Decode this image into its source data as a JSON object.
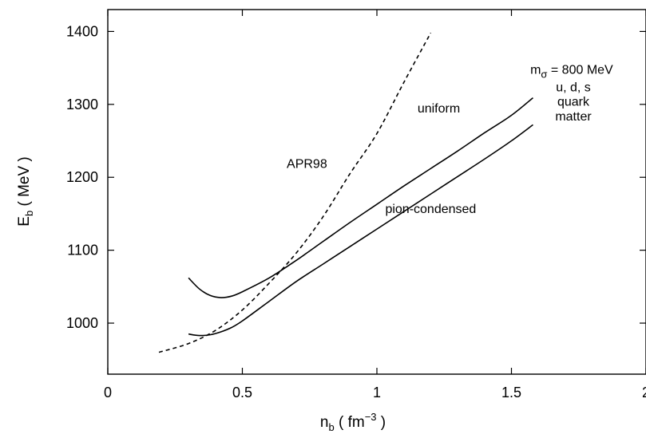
{
  "chart_data": {
    "type": "line",
    "xlabel": {
      "base": "n",
      "sub": "b",
      "unit_open": " ( fm",
      "sup": "−3",
      "unit_close": " )"
    },
    "ylabel": {
      "base": "E",
      "sub": "b",
      "unit": " ( MeV )"
    },
    "xlim": [
      0,
      2
    ],
    "ylim": [
      930,
      1430
    ],
    "x_ticks": [
      0,
      0.5,
      1,
      1.5,
      2
    ],
    "x_tick_labels": [
      "0",
      "0.5",
      "1",
      "1.5",
      "2"
    ],
    "y_ticks": [
      1000,
      1100,
      1200,
      1300,
      1400
    ],
    "y_tick_labels": [
      "1000",
      "1100",
      "1200",
      "1300",
      "1400"
    ],
    "grid": false,
    "series": [
      {
        "name": "uniform",
        "style": "solid",
        "x": [
          0.3,
          0.34,
          0.38,
          0.42,
          0.46,
          0.5,
          0.6,
          0.7,
          0.8,
          0.9,
          1.0,
          1.1,
          1.2,
          1.3,
          1.4,
          1.5,
          1.58
        ],
        "y": [
          1062,
          1047,
          1038,
          1035,
          1037,
          1043,
          1062,
          1086,
          1112,
          1138,
          1163,
          1188,
          1212,
          1236,
          1261,
          1285,
          1309
        ]
      },
      {
        "name": "pion-condensed",
        "style": "solid",
        "x": [
          0.3,
          0.34,
          0.38,
          0.42,
          0.46,
          0.5,
          0.6,
          0.7,
          0.8,
          0.9,
          1.0,
          1.1,
          1.2,
          1.3,
          1.4,
          1.5,
          1.58
        ],
        "y": [
          985,
          983,
          984,
          988,
          994,
          1003,
          1030,
          1057,
          1081,
          1105,
          1129,
          1153,
          1177,
          1201,
          1225,
          1250,
          1272
        ]
      },
      {
        "name": "APR98",
        "style": "dashed",
        "x": [
          0.19,
          0.3,
          0.4,
          0.5,
          0.6,
          0.7,
          0.8,
          0.9,
          1.0,
          1.1,
          1.2
        ],
        "y": [
          960,
          972,
          990,
          1018,
          1055,
          1096,
          1146,
          1205,
          1260,
          1330,
          1398
        ]
      }
    ],
    "annotations": [
      {
        "id": "m-sigma",
        "base": "m",
        "sub": "σ",
        "text": " = 800 MeV",
        "x": 1.57,
        "y": 1342
      },
      {
        "id": "uds",
        "text": "u, d, s",
        "x": 1.73,
        "y": 1318
      },
      {
        "id": "quark",
        "text": "quark",
        "x": 1.73,
        "y": 1298
      },
      {
        "id": "matter",
        "text": "matter",
        "x": 1.73,
        "y": 1278
      },
      {
        "id": "uniform",
        "text": "uniform",
        "x": 1.23,
        "y": 1289
      },
      {
        "id": "apr98",
        "text": "APR98",
        "x": 0.74,
        "y": 1213
      },
      {
        "id": "pion-condensed",
        "text": "pion-condensed",
        "x": 1.2,
        "y": 1151
      }
    ]
  }
}
